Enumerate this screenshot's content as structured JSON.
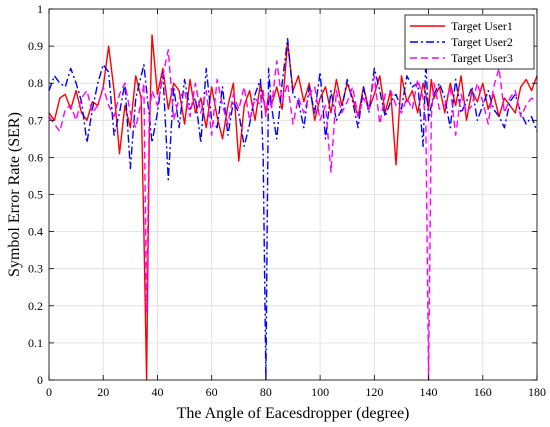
{
  "chart_data": {
    "type": "line",
    "xlabel": "The Angle of Eacesdropper (degree)",
    "ylabel": "Symbol Error Rate (SER)",
    "xlim": [
      0,
      180
    ],
    "ylim": [
      0,
      1
    ],
    "xticks": [
      "0",
      "20",
      "40",
      "60",
      "80",
      "100",
      "120",
      "140",
      "160",
      "180"
    ],
    "yticks": [
      "0",
      "0.1",
      "0.2",
      "0.3",
      "0.4",
      "0.5",
      "0.6",
      "0.7",
      "0.8",
      "0.9",
      "1"
    ],
    "grid": true,
    "legend_position": "top-right",
    "x": [
      0,
      2,
      4,
      6,
      8,
      10,
      12,
      14,
      16,
      18,
      20,
      22,
      24,
      26,
      28,
      30,
      32,
      34,
      35,
      36,
      37,
      38,
      40,
      42,
      44,
      46,
      48,
      50,
      52,
      54,
      56,
      58,
      60,
      62,
      64,
      66,
      68,
      70,
      72,
      74,
      76,
      78,
      79,
      80,
      81,
      82,
      84,
      86,
      88,
      90,
      92,
      94,
      96,
      98,
      100,
      102,
      104,
      106,
      108,
      110,
      112,
      114,
      116,
      118,
      120,
      122,
      124,
      126,
      128,
      130,
      132,
      134,
      136,
      138,
      139,
      140,
      141,
      142,
      144,
      146,
      148,
      150,
      152,
      154,
      156,
      158,
      160,
      162,
      164,
      166,
      168,
      170,
      172,
      174,
      176,
      178,
      180
    ],
    "series": [
      {
        "name": "Target User1",
        "color": "#ff0000",
        "dash": "solid",
        "values": [
          0.72,
          0.7,
          0.76,
          0.77,
          0.73,
          0.78,
          0.72,
          0.7,
          0.75,
          0.74,
          0.79,
          0.9,
          0.78,
          0.61,
          0.74,
          0.68,
          0.82,
          0.76,
          0.4,
          0.0,
          0.66,
          0.93,
          0.77,
          0.84,
          0.73,
          0.8,
          0.78,
          0.69,
          0.81,
          0.72,
          0.76,
          0.68,
          0.79,
          0.71,
          0.65,
          0.74,
          0.8,
          0.59,
          0.74,
          0.78,
          0.7,
          0.8,
          0.76,
          0.72,
          0.77,
          0.74,
          0.79,
          0.73,
          0.91,
          0.78,
          0.82,
          0.75,
          0.8,
          0.7,
          0.76,
          0.79,
          0.72,
          0.81,
          0.74,
          0.8,
          0.76,
          0.71,
          0.79,
          0.73,
          0.77,
          0.82,
          0.72,
          0.78,
          0.58,
          0.82,
          0.75,
          0.78,
          0.72,
          0.8,
          0.77,
          0.73,
          0.81,
          0.76,
          0.79,
          0.72,
          0.8,
          0.74,
          0.82,
          0.7,
          0.78,
          0.75,
          0.8,
          0.73,
          0.77,
          0.71,
          0.76,
          0.74,
          0.72,
          0.79,
          0.81,
          0.78,
          0.82
        ]
      },
      {
        "name": "Target User2",
        "color": "#0000ff",
        "dash": "dashdot",
        "values": [
          0.78,
          0.82,
          0.8,
          0.79,
          0.84,
          0.8,
          0.75,
          0.64,
          0.73,
          0.8,
          0.85,
          0.83,
          0.66,
          0.72,
          0.8,
          0.57,
          0.76,
          0.82,
          0.85,
          0.78,
          0.71,
          0.64,
          0.72,
          0.83,
          0.54,
          0.79,
          0.68,
          0.81,
          0.73,
          0.76,
          0.64,
          0.84,
          0.7,
          0.68,
          0.79,
          0.66,
          0.75,
          0.72,
          0.63,
          0.69,
          0.77,
          0.81,
          0.6,
          0.0,
          0.84,
          0.74,
          0.65,
          0.8,
          0.92,
          0.77,
          0.75,
          0.68,
          0.79,
          0.72,
          0.83,
          0.65,
          0.78,
          0.7,
          0.73,
          0.81,
          0.75,
          0.68,
          0.79,
          0.72,
          0.84,
          0.78,
          0.71,
          0.75,
          0.77,
          0.73,
          0.82,
          0.79,
          0.8,
          0.63,
          0.86,
          0.7,
          0.74,
          0.77,
          0.8,
          0.76,
          0.68,
          0.81,
          0.72,
          0.75,
          0.79,
          0.7,
          0.74,
          0.78,
          0.73,
          0.71,
          0.68,
          0.75,
          0.77,
          0.72,
          0.69,
          0.71,
          0.67
        ]
      },
      {
        "name": "Target User3",
        "color": "#ff00ff",
        "dash": "dashed",
        "values": [
          0.71,
          0.69,
          0.67,
          0.73,
          0.74,
          0.7,
          0.76,
          0.78,
          0.72,
          0.74,
          0.79,
          0.74,
          0.71,
          0.77,
          0.8,
          0.72,
          0.68,
          0.75,
          0.8,
          0.18,
          0.72,
          0.78,
          0.74,
          0.82,
          0.89,
          0.7,
          0.76,
          0.78,
          0.71,
          0.8,
          0.72,
          0.78,
          0.66,
          0.81,
          0.74,
          0.69,
          0.77,
          0.73,
          0.79,
          0.7,
          0.76,
          0.74,
          0.78,
          0.71,
          0.77,
          0.73,
          0.86,
          0.75,
          0.8,
          0.69,
          0.76,
          0.72,
          0.77,
          0.79,
          0.7,
          0.74,
          0.56,
          0.78,
          0.72,
          0.75,
          0.79,
          0.71,
          0.76,
          0.73,
          0.82,
          0.69,
          0.77,
          0.78,
          0.74,
          0.72,
          0.76,
          0.73,
          0.81,
          0.76,
          0.7,
          0.0,
          0.71,
          0.8,
          0.73,
          0.74,
          0.79,
          0.66,
          0.77,
          0.72,
          0.74,
          0.8,
          0.75,
          0.69,
          0.79,
          0.84,
          0.72,
          0.76,
          0.78,
          0.71,
          0.74,
          0.76,
          0.75
        ]
      }
    ]
  }
}
